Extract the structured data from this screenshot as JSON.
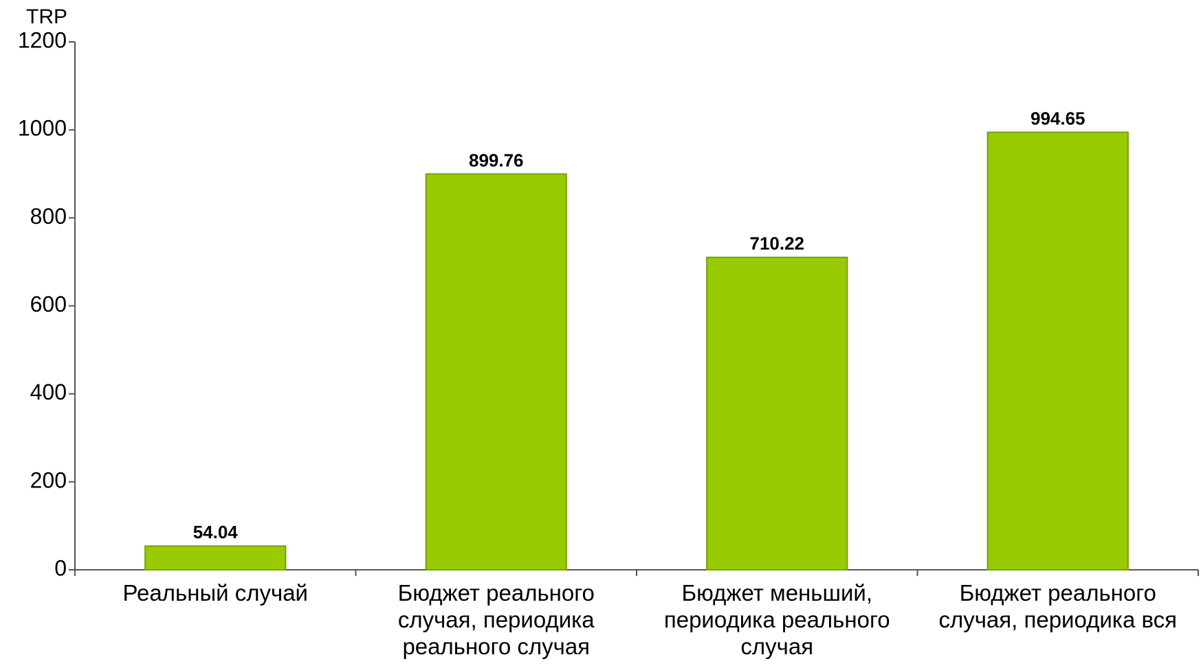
{
  "chart_data": {
    "type": "bar",
    "y_label": "TRP",
    "categories": [
      "Реальный случай",
      "Бюджет реального случая, периодика реального случая",
      "Бюджет меньший, периодика реального случая",
      "Бюджет реального случая, периодика вся"
    ],
    "values": [
      54.04,
      899.76,
      710.22,
      994.65
    ],
    "color": "#99cc00",
    "ylim": [
      0,
      1200
    ],
    "yticks": [
      0,
      200,
      400,
      600,
      800,
      1000,
      1200
    ],
    "grid": false
  }
}
